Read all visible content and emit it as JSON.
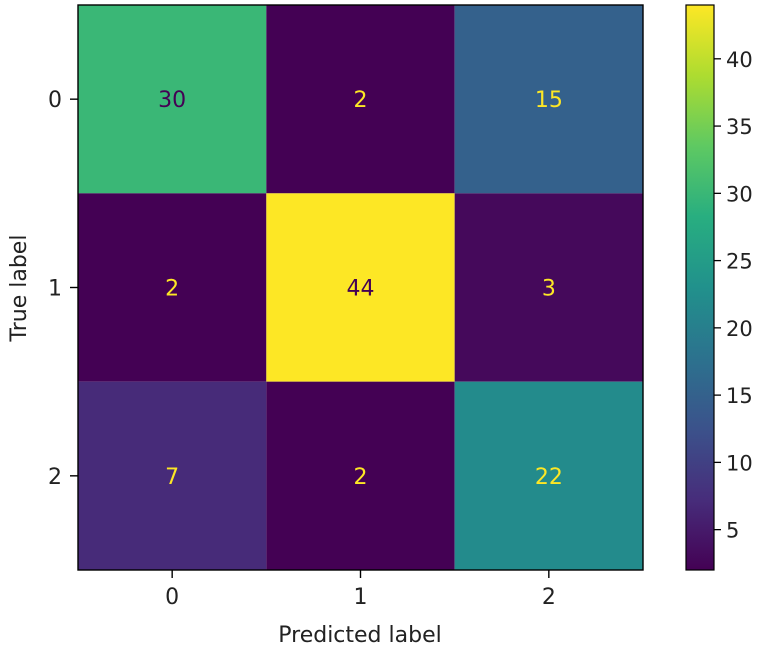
{
  "chart_data": {
    "type": "heatmap",
    "subtype": "confusion-matrix",
    "xlabel": "Predicted label",
    "ylabel": "True label",
    "x_categories": [
      "0",
      "1",
      "2"
    ],
    "y_categories": [
      "0",
      "1",
      "2"
    ],
    "values": [
      [
        30,
        2,
        15
      ],
      [
        2,
        44,
        3
      ],
      [
        7,
        2,
        22
      ]
    ],
    "colormap": "viridis",
    "color_range": [
      2,
      44
    ],
    "colorbar_ticks": [
      5,
      10,
      15,
      20,
      25,
      30,
      35,
      40
    ],
    "text_colors": {
      "on_dark": "#fde725",
      "on_light": "#440154"
    },
    "grid": false,
    "colorbar": "right"
  }
}
